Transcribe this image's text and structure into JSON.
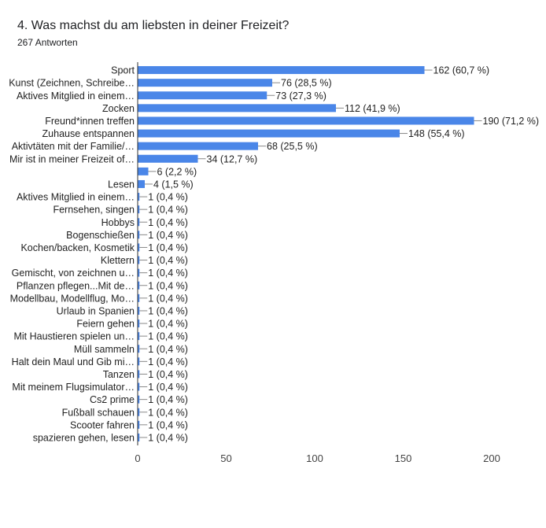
{
  "header": {
    "question": "4. Was machst du am liebsten in deiner Freizeit?",
    "responses": "267 Antworten"
  },
  "colors": {
    "bar": "#4a86e8",
    "axis": "#333333",
    "grid": "#e0e0e0",
    "connector": "#888888"
  },
  "chart_data": {
    "type": "bar",
    "orientation": "horizontal",
    "title": "4. Was machst du am liebsten in deiner Freizeit?",
    "subtitle": "267 Antworten",
    "categories": [
      "Sport",
      "Kunst (Zeichnen, Schreibe…",
      "Aktives Mitglied in einem…",
      "Zocken",
      "Freund*innen treffen",
      "Zuhause entspannen",
      "Aktivtäten mit der Familie/…",
      "Mir ist in meiner Freizeit of…",
      "",
      "Lesen",
      "Aktives Mitglied in einem…",
      "Fernsehen, singen",
      "Hobbys",
      "Bogenschießen",
      "Kochen/backen, Kosmetik",
      "Klettern",
      "Gemischt, von zeichnen u…",
      "Pflanzen pflegen...Mit de…",
      "Modellbau, Modellflug, Mo…",
      "Urlaub in Spanien",
      "Feiern gehen",
      "Mit Haustieren spielen un…",
      "Müll sammeln",
      "Halt dein Maul und Gib mi…",
      "Tanzen",
      "Mit meinem Flugsimulator…",
      "Cs2 prime",
      "Fußball schauen",
      "Scooter fahren",
      "spazieren gehen, lesen"
    ],
    "values": [
      162,
      76,
      73,
      112,
      190,
      148,
      68,
      34,
      6,
      4,
      1,
      1,
      1,
      1,
      1,
      1,
      1,
      1,
      1,
      1,
      1,
      1,
      1,
      1,
      1,
      1,
      1,
      1,
      1,
      1
    ],
    "value_labels": [
      "162 (60,7 %)",
      "76 (28,5 %)",
      "73 (27,3 %)",
      "112 (41,9 %)",
      "190 (71,2 %)",
      "148 (55,4 %)",
      "68 (25,5 %)",
      "34 (12,7 %)",
      "6 (2,2 %)",
      "4 (1,5 %)",
      "1 (0,4 %)",
      "1 (0,4 %)",
      "1 (0,4 %)",
      "1 (0,4 %)",
      "1 (0,4 %)",
      "1 (0,4 %)",
      "1 (0,4 %)",
      "1 (0,4 %)",
      "1 (0,4 %)",
      "1 (0,4 %)",
      "1 (0,4 %)",
      "1 (0,4 %)",
      "1 (0,4 %)",
      "1 (0,4 %)",
      "1 (0,4 %)",
      "1 (0,4 %)",
      "1 (0,4 %)",
      "1 (0,4 %)",
      "1 (0,4 %)",
      "1 (0,4 %)"
    ],
    "xlim": [
      0,
      200
    ],
    "xticks": [
      0,
      50,
      100,
      150,
      200
    ],
    "grid": false
  }
}
